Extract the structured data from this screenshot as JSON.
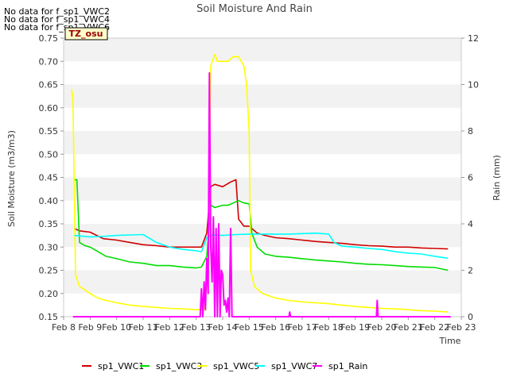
{
  "chart_data": {
    "type": "line",
    "title": "Soil Moisture And Rain",
    "xlabel": "Time",
    "ylabel": "Soil Moisture (m3/m3)",
    "y2label": "Rain (mm)",
    "no_data_messages": [
      "No data for f_sp1_VWC2",
      "No data for f_sp1_VWC4",
      "No data for f_sp1_VWC6"
    ],
    "site_badge": "TZ_osu",
    "x_ticks": [
      "Feb 8",
      "Feb 9",
      "Feb 10",
      "Feb 11",
      "Feb 12",
      "Feb 13",
      "Feb 14",
      "Feb 15",
      "Feb 16",
      "Feb 17",
      "Feb 18",
      "Feb 19",
      "Feb 20",
      "Feb 21",
      "Feb 22",
      "Feb 23"
    ],
    "xlim": [
      8,
      23
    ],
    "ylim": [
      0.15,
      0.75
    ],
    "y2lim": [
      0,
      12
    ],
    "y_ticks": [
      "0.15",
      "0.20",
      "0.25",
      "0.30",
      "0.35",
      "0.40",
      "0.45",
      "0.50",
      "0.55",
      "0.60",
      "0.65",
      "0.70",
      "0.75"
    ],
    "y2_ticks": [
      "0",
      "2",
      "4",
      "6",
      "8",
      "10",
      "12"
    ],
    "grid": "horizontal bands",
    "legend_position": "bottom",
    "series": [
      {
        "name": "sp1_VWC1",
        "color": "#d00000",
        "axis": "left",
        "x": [
          8.4,
          8.6,
          9.0,
          9.5,
          10.0,
          10.5,
          11.0,
          11.5,
          12.0,
          12.5,
          13.0,
          13.2,
          13.4,
          13.55,
          13.7,
          14.0,
          14.3,
          14.5,
          14.6,
          14.8,
          15.0,
          15.3,
          15.6,
          16.0,
          16.5,
          17.0,
          17.5,
          18.0,
          18.5,
          19.0,
          19.5,
          20.0,
          20.5,
          21.0,
          21.5,
          22.0,
          22.5
        ],
        "y": [
          0.34,
          0.335,
          0.332,
          0.318,
          0.315,
          0.31,
          0.305,
          0.303,
          0.3,
          0.3,
          0.3,
          0.3,
          0.33,
          0.43,
          0.435,
          0.43,
          0.44,
          0.445,
          0.36,
          0.345,
          0.345,
          0.33,
          0.325,
          0.32,
          0.318,
          0.315,
          0.312,
          0.31,
          0.308,
          0.305,
          0.303,
          0.302,
          0.3,
          0.3,
          0.298,
          0.297,
          0.296
        ]
      },
      {
        "name": "sp1_VWC3",
        "color": "#00dd00",
        "axis": "left",
        "x": [
          8.4,
          8.5,
          8.6,
          8.8,
          9.0,
          9.3,
          9.6,
          10.0,
          10.5,
          11.0,
          11.5,
          12.0,
          12.5,
          13.0,
          13.2,
          13.4,
          13.55,
          13.7,
          14.0,
          14.2,
          14.4,
          14.6,
          14.8,
          15.0,
          15.1,
          15.3,
          15.6,
          16.0,
          16.5,
          17.0,
          17.5,
          18.0,
          18.5,
          19.0,
          19.5,
          20.0,
          20.5,
          21.0,
          21.5,
          22.0,
          22.5
        ],
        "y": [
          0.445,
          0.445,
          0.31,
          0.303,
          0.3,
          0.29,
          0.28,
          0.275,
          0.268,
          0.265,
          0.26,
          0.26,
          0.257,
          0.255,
          0.257,
          0.28,
          0.39,
          0.385,
          0.39,
          0.39,
          0.395,
          0.4,
          0.395,
          0.393,
          0.33,
          0.3,
          0.285,
          0.28,
          0.278,
          0.275,
          0.272,
          0.27,
          0.268,
          0.265,
          0.263,
          0.262,
          0.26,
          0.258,
          0.257,
          0.256,
          0.25
        ]
      },
      {
        "name": "sp1_VWC5",
        "color": "#ffff00",
        "axis": "left",
        "x": [
          8.3,
          8.35,
          8.45,
          8.6,
          8.8,
          9.0,
          9.3,
          9.6,
          10.0,
          10.5,
          11.0,
          11.5,
          12.0,
          12.5,
          13.0,
          13.3,
          13.45,
          13.55,
          13.7,
          13.8,
          14.0,
          14.2,
          14.4,
          14.6,
          14.8,
          14.9,
          15.0,
          15.05,
          15.2,
          15.5,
          16.0,
          16.5,
          17.0,
          17.5,
          18.0,
          18.5,
          19.0,
          19.5,
          20.0,
          20.5,
          21.0,
          21.5,
          22.0,
          22.5
        ],
        "y": [
          0.64,
          0.62,
          0.24,
          0.215,
          0.208,
          0.2,
          0.19,
          0.185,
          0.18,
          0.175,
          0.172,
          0.17,
          0.168,
          0.167,
          0.165,
          0.165,
          0.24,
          0.69,
          0.715,
          0.7,
          0.7,
          0.7,
          0.71,
          0.71,
          0.69,
          0.65,
          0.55,
          0.25,
          0.215,
          0.2,
          0.19,
          0.185,
          0.182,
          0.18,
          0.178,
          0.175,
          0.172,
          0.17,
          0.168,
          0.167,
          0.165,
          0.163,
          0.162,
          0.16
        ]
      },
      {
        "name": "sp1_VWC7",
        "color": "#00ffff",
        "axis": "left",
        "x": [
          8.4,
          8.8,
          9.0,
          9.5,
          10.0,
          10.5,
          11.0,
          11.5,
          12.0,
          12.5,
          13.0,
          13.2,
          13.4,
          13.6,
          14.0,
          14.5,
          15.0,
          15.5,
          16.0,
          16.5,
          17.0,
          17.5,
          18.0,
          18.2,
          18.5,
          19.0,
          19.5,
          20.0,
          20.5,
          21.0,
          21.5,
          22.0,
          22.5
        ],
        "y": [
          0.325,
          0.323,
          0.322,
          0.323,
          0.325,
          0.326,
          0.327,
          0.31,
          0.3,
          0.295,
          0.292,
          0.29,
          0.32,
          0.326,
          0.325,
          0.327,
          0.328,
          0.328,
          0.328,
          0.328,
          0.329,
          0.33,
          0.328,
          0.31,
          0.302,
          0.3,
          0.297,
          0.295,
          0.29,
          0.287,
          0.285,
          0.28,
          0.276
        ]
      },
      {
        "name": "sp1_Rain",
        "color": "#ff00ff",
        "axis": "right",
        "x": [
          8.35,
          13.15,
          13.2,
          13.25,
          13.3,
          13.35,
          13.4,
          13.45,
          13.5,
          13.55,
          13.6,
          13.65,
          13.7,
          13.75,
          13.8,
          13.85,
          13.9,
          13.95,
          14.0,
          14.05,
          14.1,
          14.15,
          14.2,
          14.25,
          14.3,
          14.35,
          14.4,
          14.45,
          14.5,
          16.5,
          16.53,
          16.56,
          19.8,
          19.83,
          19.86,
          22.6
        ],
        "y": [
          0,
          0,
          1.2,
          0,
          1.5,
          0.3,
          2.5,
          1.0,
          10.5,
          3.0,
          1.5,
          4.3,
          0,
          3.8,
          0,
          4.0,
          0,
          2.0,
          1.8,
          0.5,
          0.7,
          0.2,
          0.8,
          0,
          3.8,
          0,
          0,
          0,
          0,
          0,
          0.2,
          0,
          0,
          0.7,
          0,
          0
        ]
      }
    ]
  }
}
